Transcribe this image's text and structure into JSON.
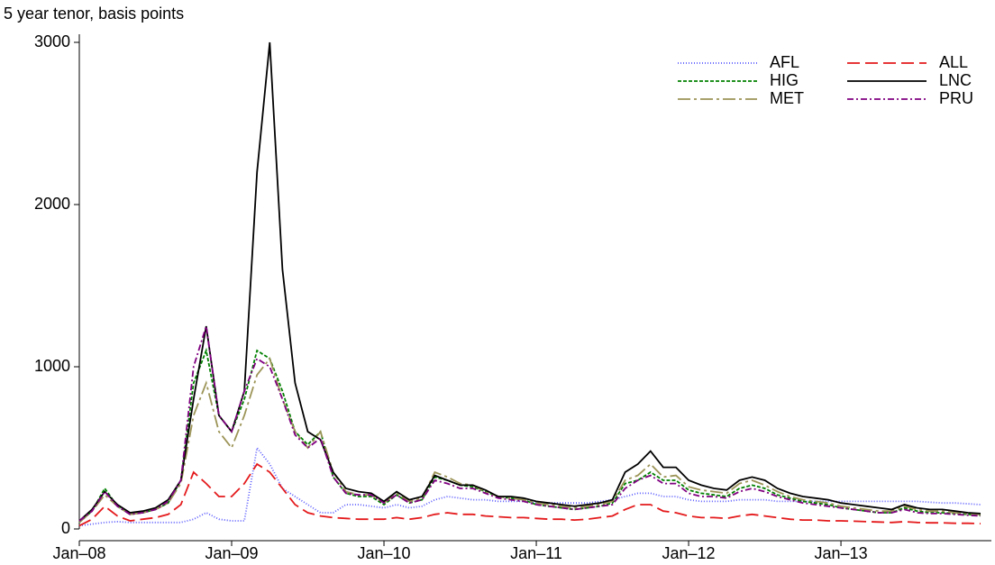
{
  "chart_data": {
    "type": "line",
    "title": "5 year tenor, basis points",
    "x": [
      "2008-01",
      "2008-02",
      "2008-03",
      "2008-04",
      "2008-05",
      "2008-06",
      "2008-07",
      "2008-08",
      "2008-09",
      "2008-10",
      "2008-11",
      "2008-12",
      "2009-01",
      "2009-02",
      "2009-03",
      "2009-04",
      "2009-05",
      "2009-06",
      "2009-07",
      "2009-08",
      "2009-09",
      "2009-10",
      "2009-11",
      "2009-12",
      "2010-01",
      "2010-02",
      "2010-03",
      "2010-04",
      "2010-05",
      "2010-06",
      "2010-07",
      "2010-08",
      "2010-09",
      "2010-10",
      "2010-11",
      "2010-12",
      "2011-01",
      "2011-02",
      "2011-03",
      "2011-04",
      "2011-05",
      "2011-06",
      "2011-07",
      "2011-08",
      "2011-09",
      "2011-10",
      "2011-11",
      "2011-12",
      "2012-01",
      "2012-02",
      "2012-03",
      "2012-04",
      "2012-05",
      "2012-06",
      "2012-07",
      "2012-08",
      "2012-09",
      "2012-10",
      "2012-11",
      "2012-12",
      "2013-01",
      "2013-02",
      "2013-03",
      "2013-04",
      "2013-05",
      "2013-06",
      "2013-07",
      "2013-08",
      "2013-09",
      "2013-10",
      "2013-11",
      "2013-12"
    ],
    "xlim": [
      "2008-01",
      "2013-12"
    ],
    "xticks": [
      {
        "value": "2008-01",
        "label": "Jan–08"
      },
      {
        "value": "2009-01",
        "label": "Jan–09"
      },
      {
        "value": "2010-01",
        "label": "Jan–10"
      },
      {
        "value": "2011-01",
        "label": "Jan–11"
      },
      {
        "value": "2012-01",
        "label": "Jan–12"
      },
      {
        "value": "2013-01",
        "label": "Jan–13"
      }
    ],
    "ylim": [
      0,
      3050
    ],
    "yticks": [
      0,
      1000,
      2000,
      3000
    ],
    "series": [
      {
        "name": "AFL",
        "color": "#5a5aff",
        "dash": "1 2",
        "values": [
          20,
          30,
          40,
          45,
          40,
          40,
          40,
          40,
          40,
          60,
          100,
          60,
          50,
          50,
          500,
          400,
          250,
          200,
          150,
          100,
          100,
          150,
          150,
          140,
          130,
          150,
          130,
          140,
          180,
          200,
          190,
          180,
          180,
          170,
          170,
          170,
          160,
          160,
          160,
          160,
          160,
          170,
          180,
          200,
          220,
          220,
          200,
          200,
          180,
          170,
          170,
          170,
          180,
          180,
          180,
          170,
          170,
          170,
          170,
          170,
          170,
          170,
          170,
          170,
          170,
          170,
          170,
          165,
          160,
          160,
          155,
          150
        ]
      },
      {
        "name": "HIG",
        "color": "#008000",
        "dash": "4 2",
        "values": [
          40,
          110,
          250,
          140,
          90,
          100,
          120,
          160,
          300,
          900,
          1100,
          700,
          600,
          800,
          1100,
          1050,
          850,
          600,
          520,
          600,
          320,
          220,
          200,
          200,
          150,
          210,
          160,
          180,
          320,
          300,
          270,
          260,
          230,
          200,
          190,
          180,
          150,
          140,
          130,
          120,
          130,
          140,
          160,
          280,
          300,
          350,
          300,
          300,
          240,
          220,
          210,
          200,
          250,
          270,
          250,
          210,
          190,
          170,
          160,
          150,
          130,
          120,
          110,
          100,
          100,
          130,
          110,
          100,
          100,
          95,
          90,
          85
        ]
      },
      {
        "name": "MET",
        "color": "#9c9457",
        "dash": "14 4 3 4",
        "values": [
          40,
          110,
          210,
          140,
          90,
          100,
          120,
          160,
          280,
          700,
          900,
          600,
          500,
          700,
          950,
          1050,
          800,
          600,
          500,
          600,
          350,
          230,
          210,
          210,
          160,
          220,
          170,
          190,
          350,
          320,
          280,
          270,
          230,
          200,
          190,
          180,
          160,
          150,
          140,
          130,
          140,
          150,
          170,
          300,
          330,
          400,
          320,
          330,
          260,
          240,
          230,
          220,
          280,
          300,
          270,
          230,
          200,
          180,
          170,
          160,
          140,
          130,
          120,
          110,
          110,
          140,
          120,
          110,
          110,
          100,
          95,
          90
        ]
      },
      {
        "name": "ALL",
        "color": "#e41a1c",
        "dash": "14 6",
        "values": [
          20,
          60,
          140,
          80,
          50,
          60,
          70,
          90,
          150,
          350,
          280,
          200,
          200,
          280,
          400,
          350,
          250,
          150,
          100,
          80,
          70,
          65,
          60,
          60,
          60,
          70,
          60,
          70,
          90,
          100,
          90,
          90,
          80,
          75,
          70,
          70,
          65,
          60,
          60,
          55,
          60,
          70,
          80,
          120,
          150,
          150,
          110,
          100,
          80,
          70,
          70,
          65,
          80,
          90,
          80,
          70,
          60,
          55,
          55,
          50,
          50,
          48,
          45,
          43,
          40,
          45,
          40,
          38,
          38,
          35,
          35,
          33
        ]
      },
      {
        "name": "LNC",
        "color": "#000000",
        "dash": "none",
        "values": [
          50,
          120,
          230,
          150,
          100,
          110,
          130,
          180,
          300,
          800,
          1250,
          700,
          600,
          850,
          2200,
          3000,
          1600,
          900,
          600,
          550,
          350,
          250,
          230,
          220,
          170,
          230,
          180,
          200,
          330,
          300,
          270,
          270,
          240,
          200,
          200,
          190,
          170,
          160,
          150,
          140,
          150,
          160,
          180,
          350,
          400,
          480,
          380,
          380,
          300,
          270,
          250,
          240,
          300,
          320,
          300,
          250,
          220,
          200,
          190,
          180,
          160,
          150,
          140,
          130,
          120,
          150,
          130,
          120,
          120,
          110,
          100,
          95
        ]
      },
      {
        "name": "PRU",
        "color": "#800080",
        "dash": "7 3 2 3",
        "values": [
          50,
          110,
          230,
          140,
          90,
          100,
          120,
          170,
          300,
          1000,
          1250,
          700,
          600,
          850,
          1050,
          1000,
          800,
          580,
          500,
          560,
          320,
          220,
          210,
          210,
          160,
          210,
          160,
          180,
          300,
          280,
          250,
          250,
          220,
          190,
          180,
          170,
          150,
          140,
          130,
          120,
          130,
          140,
          150,
          250,
          300,
          330,
          280,
          280,
          220,
          200,
          200,
          190,
          230,
          250,
          230,
          200,
          180,
          160,
          150,
          140,
          130,
          120,
          110,
          100,
          100,
          120,
          100,
          95,
          95,
          90,
          85,
          80
        ]
      }
    ]
  }
}
